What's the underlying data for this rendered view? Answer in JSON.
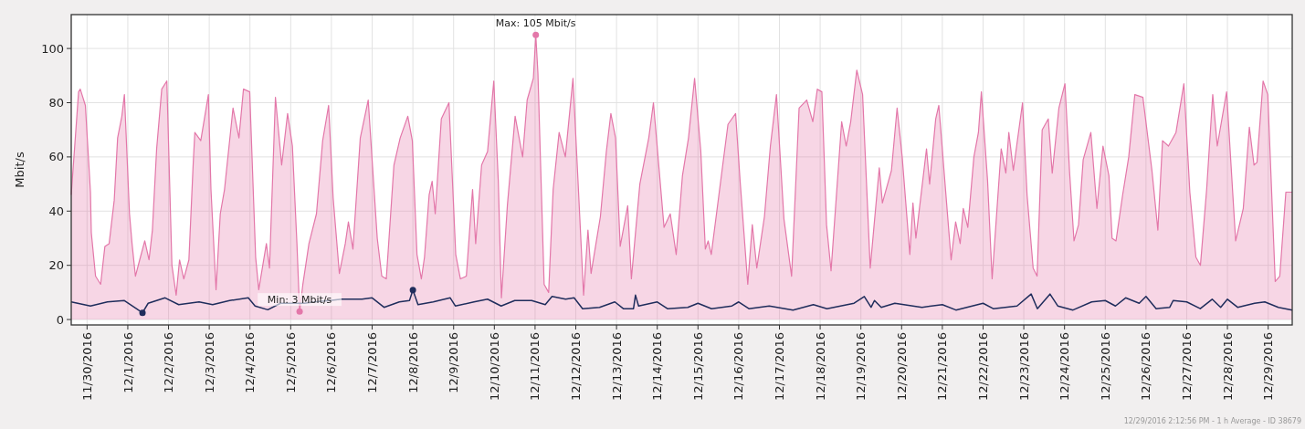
{
  "chart_data": {
    "type": "area",
    "ylabel": "Mbit/s",
    "xlim": [
      "2016-11-29T14:40",
      "2016-12-29T14:10"
    ],
    "xticks": [
      {
        "value": "2016-11-30",
        "label": "11/30/2016"
      },
      {
        "value": "2016-12-01",
        "label": "12/1/2016"
      },
      {
        "value": "2016-12-02",
        "label": "12/2/2016"
      },
      {
        "value": "2016-12-03",
        "label": "12/3/2016"
      },
      {
        "value": "2016-12-04",
        "label": "12/4/2016"
      },
      {
        "value": "2016-12-05",
        "label": "12/5/2016"
      },
      {
        "value": "2016-12-06",
        "label": "12/6/2016"
      },
      {
        "value": "2016-12-07",
        "label": "12/7/2016"
      },
      {
        "value": "2016-12-08",
        "label": "12/8/2016"
      },
      {
        "value": "2016-12-09",
        "label": "12/9/2016"
      },
      {
        "value": "2016-12-10",
        "label": "12/10/2016"
      },
      {
        "value": "2016-12-11",
        "label": "12/11/2016"
      },
      {
        "value": "2016-12-12",
        "label": "12/12/2016"
      },
      {
        "value": "2016-12-13",
        "label": "12/13/2016"
      },
      {
        "value": "2016-12-14",
        "label": "12/14/2016"
      },
      {
        "value": "2016-12-15",
        "label": "12/15/2016"
      },
      {
        "value": "2016-12-16",
        "label": "12/16/2016"
      },
      {
        "value": "2016-12-17",
        "label": "12/17/2016"
      },
      {
        "value": "2016-12-18",
        "label": "12/18/2016"
      },
      {
        "value": "2016-12-19",
        "label": "12/19/2016"
      },
      {
        "value": "2016-12-20",
        "label": "12/20/2016"
      },
      {
        "value": "2016-12-21",
        "label": "12/21/2016"
      },
      {
        "value": "2016-12-22",
        "label": "12/22/2016"
      },
      {
        "value": "2016-12-23",
        "label": "12/23/2016"
      },
      {
        "value": "2016-12-24",
        "label": "12/24/2016"
      },
      {
        "value": "2016-12-25",
        "label": "12/25/2016"
      },
      {
        "value": "2016-12-26",
        "label": "12/26/2016"
      },
      {
        "value": "2016-12-27",
        "label": "12/27/2016"
      },
      {
        "value": "2016-12-28",
        "label": "12/28/2016"
      },
      {
        "value": "2016-12-29",
        "label": "12/29/2016"
      }
    ],
    "ylim": [
      -2,
      112.5
    ],
    "yticks": [
      0,
      20,
      40,
      60,
      80,
      100
    ],
    "grid": true,
    "series": [
      {
        "color": "#e377a9",
        "x": [
          "2016-11-29T14:40",
          "2016-11-29T19:00",
          "2016-11-29T20:00",
          "2016-11-29T23:00",
          "2016-11-30T02:00",
          "2016-11-30T02:30",
          "2016-11-30T05:00",
          "2016-11-30T08:00",
          "2016-11-30T10:30",
          "2016-11-30T13:00",
          "2016-11-30T16:00",
          "2016-11-30T18:00",
          "2016-11-30T20:30",
          "2016-11-30T22:00",
          "2016-12-01T01:00",
          "2016-12-01T02:30",
          "2016-12-01T04:30",
          "2016-12-01T07:00",
          "2016-12-01T10:00",
          "2016-12-01T12:30",
          "2016-12-01T14:30",
          "2016-12-01T17:00",
          "2016-12-01T20:00",
          "2016-12-01T23:00",
          "2016-12-02T02:00",
          "2016-12-02T04:30",
          "2016-12-02T06:30",
          "2016-12-02T09:00",
          "2016-12-02T12:00",
          "2016-12-02T14:30",
          "2016-12-02T15:30",
          "2016-12-02T19:00",
          "2016-12-02T23:30",
          "2016-12-03T01:00",
          "2016-12-03T04:00",
          "2016-12-03T06:30",
          "2016-12-03T09:00",
          "2016-12-03T14:00",
          "2016-12-03T17:30",
          "2016-12-03T20:10",
          "2016-12-03T23:50",
          "2016-12-04T03:20",
          "2016-12-04T05:10",
          "2016-12-04T09:40",
          "2016-12-04T11:30",
          "2016-12-04T15:00",
          "2016-12-04T18:40",
          "2016-12-04T22:10",
          "2016-12-05T01:00",
          "2016-12-05T03:40",
          "2016-12-05T05:15",
          "2016-12-05T07:10",
          "2016-12-05T10:45",
          "2016-12-05T15:10",
          "2016-12-05T18:50",
          "2016-12-05T22:20",
          "2016-12-06T01:00",
          "2016-12-06T04:40",
          "2016-12-06T08:10",
          "2016-12-06T10:00",
          "2016-12-06T12:40",
          "2016-12-06T17:00",
          "2016-12-06T21:40",
          "2016-12-07T03:00",
          "2016-12-07T05:40",
          "2016-12-07T08:20",
          "2016-12-07T12:50",
          "2016-12-07T16:30",
          "2016-12-07T21:00",
          "2016-12-07T23:40",
          "2016-12-08T02:25",
          "2016-12-08T05:00",
          "2016-12-08T06:50",
          "2016-12-08T09:35",
          "2016-12-08T11:20",
          "2016-12-08T13:10",
          "2016-12-08T16:45",
          "2016-12-08T21:15",
          "2016-12-09T01:15",
          "2016-12-09T04:00",
          "2016-12-09T07:30",
          "2016-12-09T11:10",
          "2016-12-09T13:00",
          "2016-12-09T16:30",
          "2016-12-09T20:00",
          "2016-12-09T23:40",
          "2016-12-10T02:20",
          "2016-12-10T04:10",
          "2016-12-10T07:40",
          "2016-12-10T12:15",
          "2016-12-10T16:40",
          "2016-12-10T19:20",
          "2016-12-10T23:00",
          "2016-12-11T00:25",
          "2016-12-11T01:40",
          "2016-12-11T05:20",
          "2016-12-11T08:00",
          "2016-12-11T10:40",
          "2016-12-11T14:10",
          "2016-12-11T17:50",
          "2016-12-11T22:20",
          "2016-12-12T01:00",
          "2016-12-12T04:35",
          "2016-12-12T07:10",
          "2016-12-12T09:00",
          "2016-12-12T14:30",
          "2016-12-12T18:00",
          "2016-12-12T20:40",
          "2016-12-12T23:25",
          "2016-12-13T02:10",
          "2016-12-13T06:35",
          "2016-12-13T08:45",
          "2016-12-13T13:45",
          "2016-12-13T19:00",
          "2016-12-13T21:45",
          "2016-12-14T04:00",
          "2016-12-14T07:40",
          "2016-12-14T11:10",
          "2016-12-14T14:50",
          "2016-12-14T18:25",
          "2016-12-14T22:00",
          "2016-12-15T01:40",
          "2016-12-15T04:20",
          "2016-12-15T06:00",
          "2016-12-15T07:50",
          "2016-12-15T12:20",
          "2016-12-15T17:40",
          "2016-12-15T22:10",
          "2016-12-16T00:50",
          "2016-12-16T05:20",
          "2016-12-16T08:00",
          "2016-12-16T10:40",
          "2016-12-16T15:10",
          "2016-12-16T18:40",
          "2016-12-16T22:15",
          "2016-12-17T02:40",
          "2016-12-17T07:10",
          "2016-12-17T11:35",
          "2016-12-17T16:05",
          "2016-12-17T19:40",
          "2016-12-17T22:20",
          "2016-12-18T01:00",
          "2016-12-18T03:45",
          "2016-12-18T06:25",
          "2016-12-18T12:40",
          "2016-12-18T15:20",
          "2016-12-18T18:00",
          "2016-12-18T21:35",
          "2016-12-19T01:00",
          "2016-12-19T05:30",
          "2016-12-19T10:50",
          "2016-12-19T12:40",
          "2016-12-19T18:00",
          "2016-12-19T21:20",
          "2016-12-20T00:20",
          "2016-12-20T04:50",
          "2016-12-20T06:40",
          "2016-12-20T08:25",
          "2016-12-20T14:40",
          "2016-12-20T16:30",
          "2016-12-20T20:05",
          "2016-12-20T21:55",
          "2016-12-21T05:10",
          "2016-12-21T07:50",
          "2016-12-21T10:30",
          "2016-12-21T12:20",
          "2016-12-21T15:00",
          "2016-12-21T18:35",
          "2016-12-21T21:15",
          "2016-12-21T23:00",
          "2016-12-22T02:40",
          "2016-12-22T05:20",
          "2016-12-22T10:40",
          "2016-12-22T13:25",
          "2016-12-22T15:10",
          "2016-12-22T17:50",
          "2016-12-22T23:15",
          "2016-12-23T01:55",
          "2016-12-23T05:30",
          "2016-12-23T07:50",
          "2016-12-23T10:50",
          "2016-12-23T14:25",
          "2016-12-23T16:45",
          "2016-12-23T20:40",
          "2016-12-24T00:15",
          "2016-12-24T02:55",
          "2016-12-24T05:35",
          "2016-12-24T08:15",
          "2016-12-24T11:00",
          "2016-12-24T15:30",
          "2016-12-24T19:05",
          "2016-12-24T22:40",
          "2016-12-25T02:10",
          "2016-12-25T04:00",
          "2016-12-25T06:20",
          "2016-12-25T10:15",
          "2016-12-25T13:50",
          "2016-12-25T17:25",
          "2016-12-25T22:10",
          "2016-12-26T03:30",
          "2016-12-26T07:00",
          "2016-12-26T09:45",
          "2016-12-26T13:15",
          "2016-12-26T17:40",
          "2016-12-26T22:20",
          "2016-12-27T01:50",
          "2016-12-27T05:25",
          "2016-12-27T08:05",
          "2016-12-27T11:45",
          "2016-12-27T15:20",
          "2016-12-27T18:00",
          "2016-12-27T23:30",
          "2016-12-28T04:50",
          "2016-12-28T09:20",
          "2016-12-28T12:55",
          "2016-12-28T15:40",
          "2016-12-28T17:25",
          "2016-12-28T21:00",
          "2016-12-28T23:45",
          "2016-12-29T04:10",
          "2016-12-29T06:50",
          "2016-12-29T10:25",
          "2016-12-29T14:10"
        ],
        "values": [
          46,
          84,
          85,
          79,
          47,
          32,
          16,
          13,
          27,
          28,
          44,
          67,
          75,
          83,
          39,
          28,
          16,
          22,
          29,
          22,
          33,
          63,
          85,
          88,
          20,
          9,
          22,
          15,
          22,
          57,
          69,
          66,
          83,
          48,
          11,
          39,
          48,
          78,
          67,
          85,
          84,
          23,
          11,
          28,
          19,
          82,
          57,
          76,
          64,
          28,
          3,
          13,
          28,
          39,
          66,
          79,
          45,
          17,
          28,
          36,
          26,
          67,
          81,
          30,
          16,
          15,
          57,
          67,
          75,
          66,
          24,
          15,
          23,
          46,
          51,
          39,
          74,
          80,
          24,
          15,
          16,
          48,
          28,
          57,
          62,
          88,
          51,
          8,
          42,
          75,
          60,
          81,
          89,
          105,
          91,
          13,
          10,
          48,
          69,
          60,
          89,
          55,
          9,
          33,
          17,
          38,
          62,
          76,
          67,
          27,
          42,
          15,
          50,
          67,
          80,
          34,
          39,
          24,
          53,
          67,
          89,
          62,
          26,
          29,
          24,
          46,
          72,
          76,
          51,
          13,
          35,
          19,
          38,
          64,
          83,
          37,
          16,
          78,
          81,
          73,
          85,
          84,
          35,
          18,
          73,
          64,
          73,
          92,
          83,
          19,
          56,
          43,
          55,
          78,
          60,
          24,
          43,
          30,
          63,
          50,
          74,
          79,
          22,
          36,
          28,
          41,
          34,
          60,
          69,
          84,
          51,
          15,
          63,
          54,
          69,
          55,
          80,
          46,
          19,
          16,
          70,
          74,
          54,
          78,
          87,
          55,
          29,
          35,
          59,
          69,
          41,
          64,
          53,
          30,
          29,
          46,
          60,
          83,
          82,
          55,
          33,
          66,
          64,
          69,
          87,
          47,
          23,
          20,
          48,
          83,
          64,
          84,
          29,
          41,
          71,
          57,
          58,
          88,
          83,
          14,
          16,
          47,
          47
        ]
      },
      {
        "type": "line",
        "color": "#1f2d5c",
        "x": [
          "2016-11-29T14:40",
          "2016-11-30T02:00",
          "2016-11-30T12:00",
          "2016-11-30T22:00",
          "2016-12-01T08:40",
          "2016-12-01T12:00",
          "2016-12-01T22:00",
          "2016-12-02T06:00",
          "2016-12-02T18:00",
          "2016-12-03T02:00",
          "2016-12-03T12:00",
          "2016-12-03T23:00",
          "2016-12-04T03:00",
          "2016-12-04T10:30",
          "2016-12-04T18:00",
          "2016-12-05T08:00",
          "2016-12-05T14:00",
          "2016-12-05T23:00",
          "2016-12-06T06:00",
          "2016-12-06T18:00",
          "2016-12-07T00:00",
          "2016-12-07T07:00",
          "2016-12-07T16:00",
          "2016-12-07T22:00",
          "2016-12-08T00:00",
          "2016-12-08T03:00",
          "2016-12-08T12:00",
          "2016-12-08T22:00",
          "2016-12-09T01:00",
          "2016-12-09T12:00",
          "2016-12-09T20:00",
          "2016-12-10T04:00",
          "2016-12-10T12:00",
          "2016-12-10T22:00",
          "2016-12-11T06:00",
          "2016-12-11T10:00",
          "2016-12-11T18:00",
          "2016-12-11T23:00",
          "2016-12-12T04:00",
          "2016-12-12T14:00",
          "2016-12-12T23:00",
          "2016-12-13T04:00",
          "2016-12-13T10:00",
          "2016-12-13T11:10",
          "2016-12-13T13:00",
          "2016-12-14T00:00",
          "2016-12-14T06:00",
          "2016-12-14T18:00",
          "2016-12-15T00:00",
          "2016-12-15T08:00",
          "2016-12-15T20:00",
          "2016-12-16T00:00",
          "2016-12-16T06:00",
          "2016-12-16T18:00",
          "2016-12-17T08:00",
          "2016-12-17T20:00",
          "2016-12-18T04:00",
          "2016-12-18T20:00",
          "2016-12-19T02:00",
          "2016-12-19T06:00",
          "2016-12-19T08:00",
          "2016-12-19T12:00",
          "2016-12-19T20:00",
          "2016-12-20T12:00",
          "2016-12-21T00:00",
          "2016-12-21T08:00",
          "2016-12-22T00:00",
          "2016-12-22T06:00",
          "2016-12-22T20:00",
          "2016-12-23T04:20",
          "2016-12-23T08:00",
          "2016-12-23T15:25",
          "2016-12-23T20:00",
          "2016-12-24T05:00",
          "2016-12-24T16:00",
          "2016-12-25T00:00",
          "2016-12-25T06:00",
          "2016-12-25T12:00",
          "2016-12-25T20:00",
          "2016-12-26T00:00",
          "2016-12-26T06:00",
          "2016-12-26T14:00",
          "2016-12-26T16:00",
          "2016-12-27T00:00",
          "2016-12-27T08:00",
          "2016-12-27T15:00",
          "2016-12-27T20:00",
          "2016-12-28T00:00",
          "2016-12-28T06:00",
          "2016-12-28T16:00",
          "2016-12-28T22:00",
          "2016-12-29T06:00",
          "2016-12-29T14:10"
        ],
        "values": [
          6.5,
          5,
          6.5,
          7,
          2.5,
          6,
          8,
          5.5,
          6.5,
          5.5,
          7,
          8,
          5,
          3.6,
          6,
          6,
          6.5,
          7,
          7.5,
          7.5,
          8,
          4.5,
          6.5,
          7,
          10.9,
          5.5,
          6.5,
          8,
          5,
          6.5,
          7.5,
          5,
          7,
          7,
          5.5,
          8.5,
          7.5,
          8,
          4,
          4.5,
          6.5,
          4,
          4,
          9,
          5,
          6.5,
          4,
          4.5,
          6,
          4,
          5,
          6.5,
          4,
          5,
          3.5,
          5.5,
          4,
          6,
          8.5,
          4.5,
          7,
          4.5,
          6,
          4.5,
          5.5,
          3.5,
          6,
          4,
          5,
          9.4,
          4,
          9.4,
          5,
          3.5,
          6.5,
          7,
          5,
          8,
          6,
          8.5,
          4,
          4.5,
          7,
          6.5,
          4,
          7.5,
          4.5,
          7.5,
          4.5,
          6,
          6.5,
          4.5,
          3.5
        ]
      },
      {
        "type": "scatter",
        "color": "#e377a9",
        "x": [
          "2016-12-05T05:15",
          "2016-12-11T00:25"
        ],
        "values": [
          3,
          105
        ]
      },
      {
        "type": "scatter",
        "color": "#1f2d5c",
        "x": [
          "2016-12-01T08:40",
          "2016-12-08T00:00"
        ],
        "values": [
          2.5,
          10.9
        ]
      }
    ],
    "annotations": [
      {
        "text": "Max: 105 Mbit/s",
        "x": "2016-12-11T00:25",
        "y": 105
      },
      {
        "text": "Min: 3 Mbit/s",
        "x": "2016-12-05T05:15",
        "y": 3
      },
      "12/29/2016 2:12:56 PM - 1 h Average - ID 38679"
    ]
  }
}
